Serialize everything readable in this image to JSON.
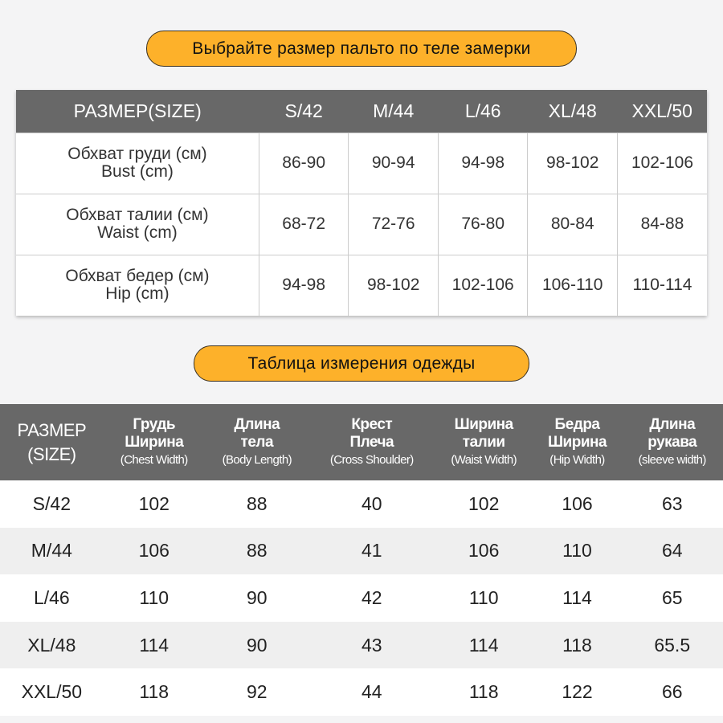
{
  "banner1": "Выбрайте размер пальто по теле замерки",
  "body_table": {
    "header": [
      "РАЗМЕР(SIZE)",
      "S/42",
      "M/44",
      "L/46",
      "XL/48",
      "XXL/50"
    ],
    "rows": [
      {
        "ru": "Обхват груди (см)",
        "en": "Bust (cm)",
        "values": [
          "86-90",
          "90-94",
          "94-98",
          "98-102",
          "102-106"
        ]
      },
      {
        "ru": "Обхват талии (см)",
        "en": "Waist (cm)",
        "values": [
          "68-72",
          "72-76",
          "76-80",
          "80-84",
          "84-88"
        ]
      },
      {
        "ru": "Обхват бедер (см)",
        "en": "Hip (cm)",
        "values": [
          "94-98",
          "98-102",
          "102-106",
          "106-110",
          "110-114"
        ]
      }
    ]
  },
  "banner2": "Таблица измерения одежды",
  "garment_table": {
    "header": [
      {
        "ru": "РАЗМЕР",
        "en": "(SIZE)"
      },
      {
        "ru1": "Грудь",
        "ru2": "Ширина",
        "en": "(Chest Width)"
      },
      {
        "ru1": "Длина",
        "ru2": "тела",
        "en": "(Body Length)"
      },
      {
        "ru1": "Крест",
        "ru2": "Плеча",
        "en": "(Cross Shoulder)"
      },
      {
        "ru1": "Ширина",
        "ru2": "талии",
        "en": "(Waist Width)"
      },
      {
        "ru1": "Бедра",
        "ru2": "Ширина",
        "en": "(Hip Width)"
      },
      {
        "ru1": "Длина",
        "ru2": "рукава",
        "en": "(sleeve width)"
      }
    ],
    "rows": [
      [
        "S/42",
        "102",
        "88",
        "40",
        "102",
        "106",
        "63"
      ],
      [
        "M/44",
        "106",
        "88",
        "41",
        "106",
        "110",
        "64"
      ],
      [
        "L/46",
        "110",
        "90",
        "42",
        "110",
        "114",
        "65"
      ],
      [
        "XL/48",
        "114",
        "90",
        "43",
        "114",
        "118",
        "65.5"
      ],
      [
        "XXL/50",
        "118",
        "92",
        "44",
        "118",
        "122",
        "66"
      ]
    ]
  },
  "colors": {
    "accent": "#fdb12a",
    "header": "#686868",
    "background": "#f4f4f5"
  }
}
